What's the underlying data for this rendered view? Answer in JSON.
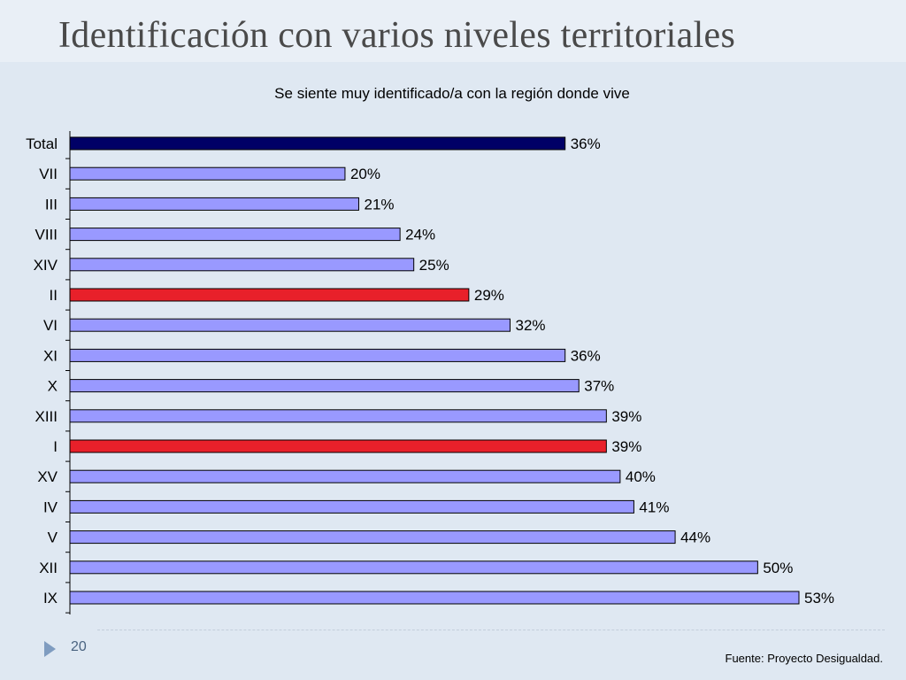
{
  "slide": {
    "title": "Identificación con varios niveles territoriales",
    "page_number": "20",
    "source": "Fuente: Proyecto Desigualdad."
  },
  "chart_data": {
    "type": "bar",
    "orientation": "horizontal",
    "title": "Se siente muy identificado/a con la región donde vive",
    "categories": [
      "Total",
      "VII",
      "III",
      "VIII",
      "XIV",
      "II",
      "VI",
      "XI",
      "X",
      "XIII",
      "I",
      "XV",
      "IV",
      "V",
      "XII",
      "IX"
    ],
    "values": [
      36,
      20,
      21,
      24,
      25,
      29,
      32,
      36,
      37,
      39,
      39,
      40,
      41,
      44,
      50,
      53
    ],
    "value_labels": [
      "36%",
      "20%",
      "21%",
      "24%",
      "25%",
      "29%",
      "32%",
      "36%",
      "37%",
      "39%",
      "39%",
      "40%",
      "41%",
      "44%",
      "50%",
      "53%"
    ],
    "bar_colors": [
      "#000066",
      "#9999ff",
      "#9999ff",
      "#9999ff",
      "#9999ff",
      "#e8202a",
      "#9999ff",
      "#9999ff",
      "#9999ff",
      "#9999ff",
      "#e8202a",
      "#9999ff",
      "#9999ff",
      "#9999ff",
      "#9999ff",
      "#9999ff"
    ],
    "xlim": [
      0,
      53
    ],
    "grid": false,
    "legend": "none"
  }
}
